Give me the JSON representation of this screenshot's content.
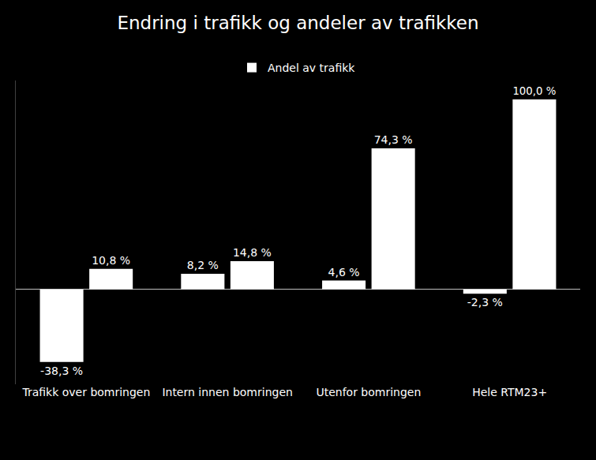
{
  "chart_data": {
    "type": "bar",
    "title": "Endring i trafikk og andeler av trafikken",
    "categories": [
      "Trafikk over bomringen",
      "Intern innen bomringen",
      "Utenfor bomringen",
      "Hele RTM23+"
    ],
    "series": [
      {
        "color": "#ffffff",
        "values": [
          -38.3,
          8.2,
          4.6,
          -2.3
        ],
        "value_labels": [
          "-38,3 %",
          "8,2 %",
          "4,6 %",
          "-2,3 %"
        ]
      },
      {
        "name": "Andel av trafikk",
        "color": "#ffffff",
        "values": [
          10.8,
          14.8,
          74.3,
          100.0
        ],
        "value_labels": [
          "10,8 %",
          "14,8 %",
          "74,3 %",
          "100,0 %"
        ]
      }
    ],
    "ylim": [
      -50,
      110
    ],
    "grid": false,
    "legend": "top",
    "data_labels": true,
    "tick_labels": "x"
  }
}
